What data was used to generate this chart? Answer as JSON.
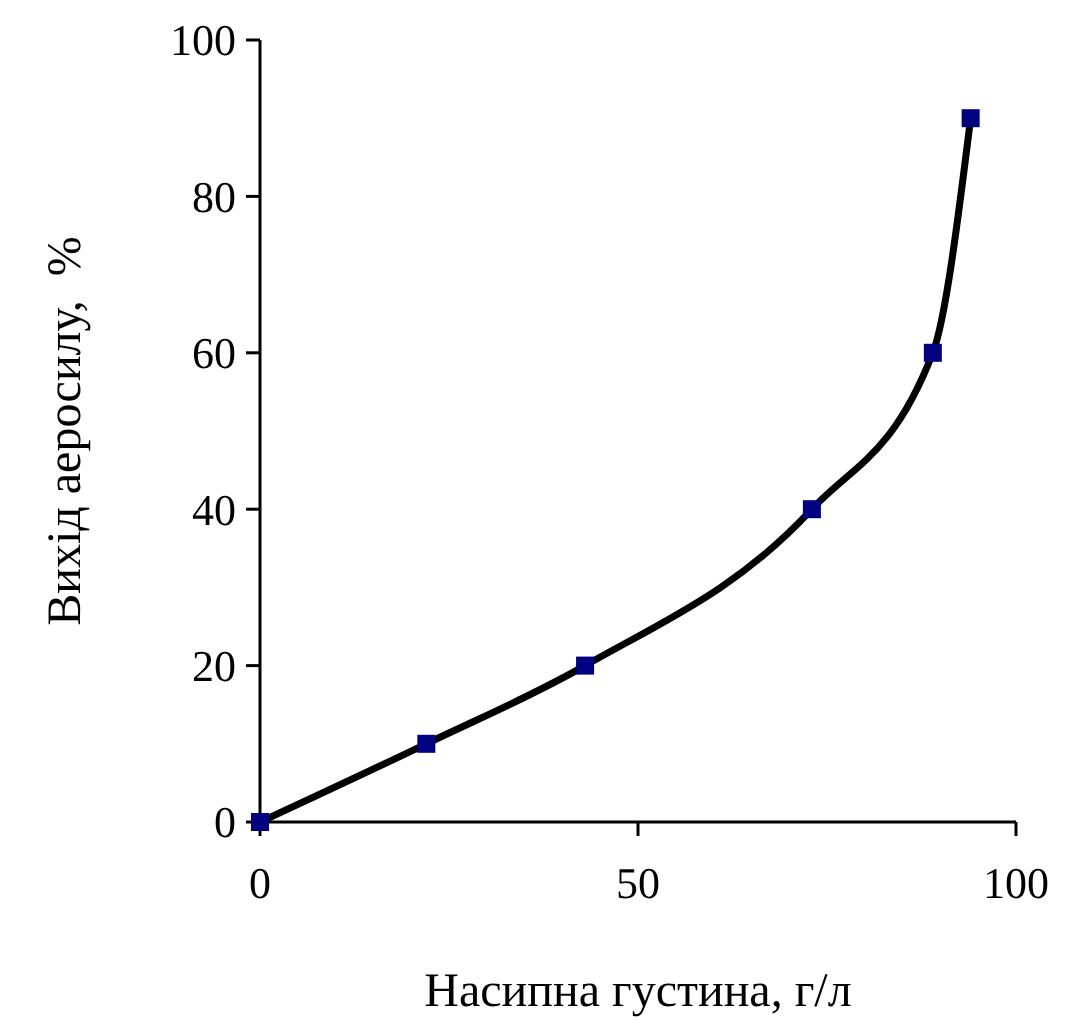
{
  "chart_data": {
    "type": "line",
    "xlabel": "Насипна густина, г/л",
    "ylabel": "Вихід аеросилу,  %",
    "x": [
      0,
      22,
      43,
      73,
      89,
      94
    ],
    "series": [
      {
        "color": "#000000",
        "values": [
          0,
          10,
          20,
          40,
          60,
          90
        ],
        "marker": "none"
      },
      {
        "type": "scatter",
        "color": "#000080",
        "values": [
          0,
          10,
          20,
          40,
          60,
          90
        ],
        "marker": "square"
      }
    ],
    "xlim": [
      0,
      100
    ],
    "xticks": [
      0,
      50,
      100
    ],
    "ylim": [
      0,
      100
    ],
    "yticks": [
      0,
      20,
      40,
      60,
      80,
      100
    ],
    "grid": false
  }
}
